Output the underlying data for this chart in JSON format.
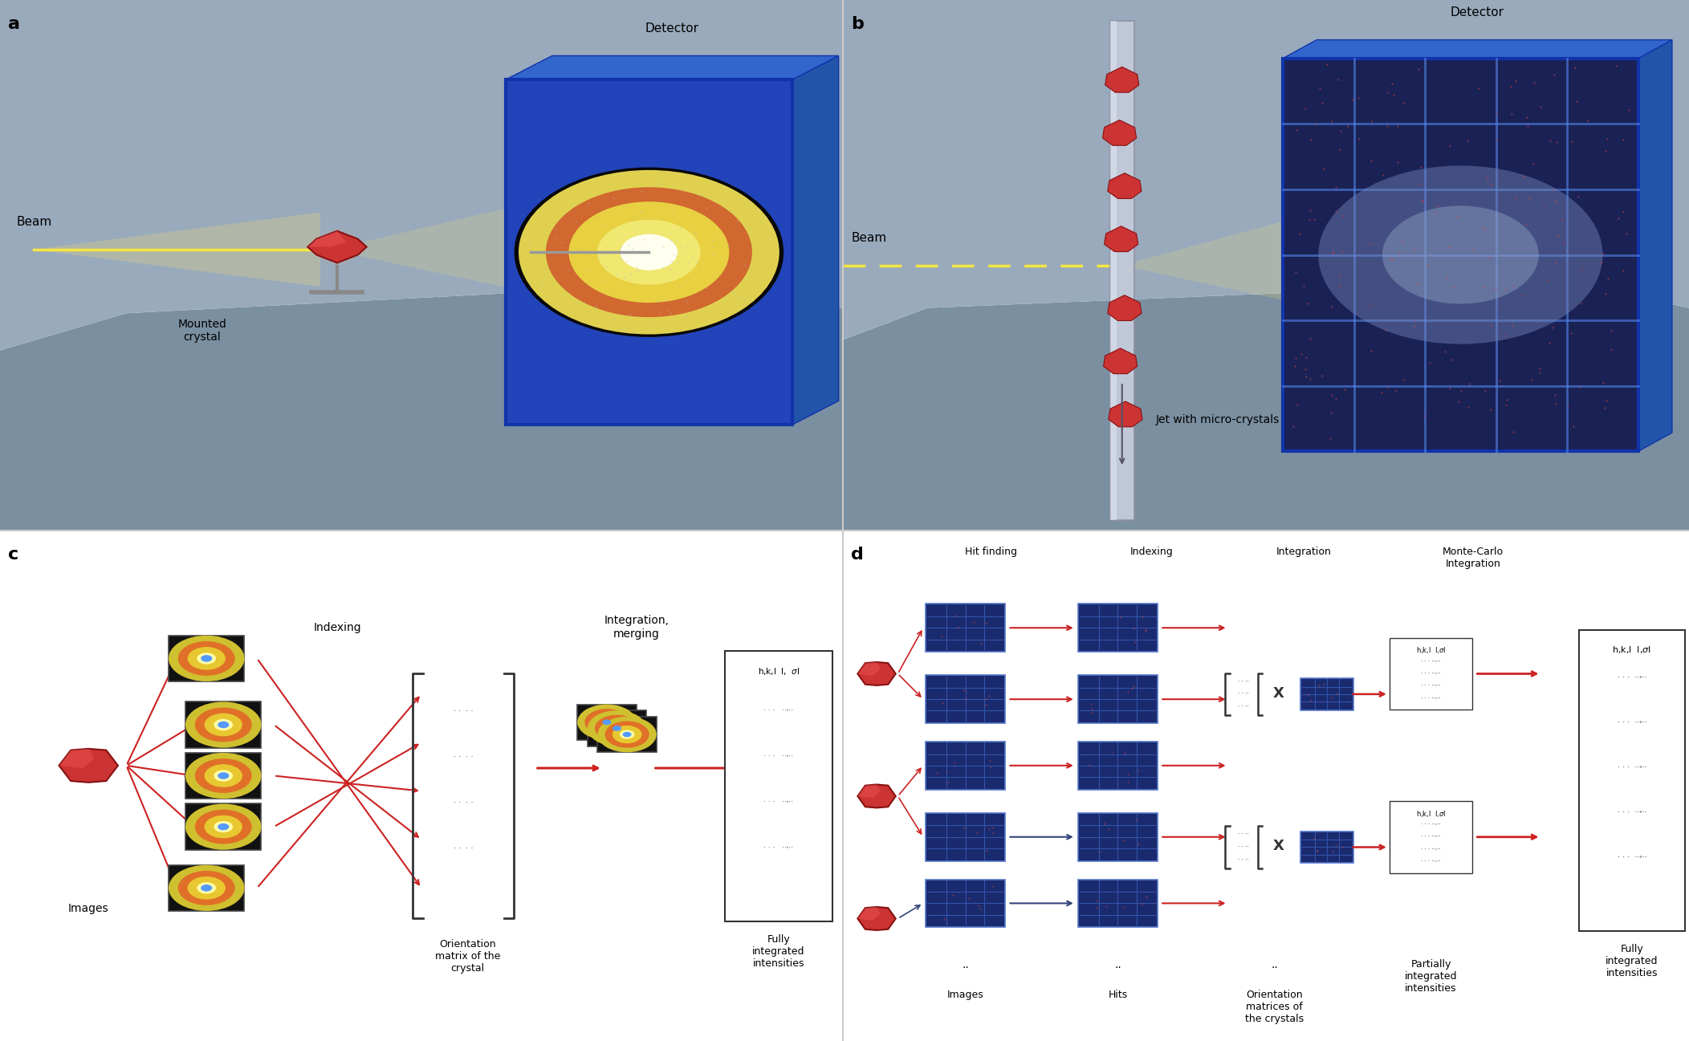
{
  "bg_color": "#ffffff",
  "panel_a_bg": "#8899aa",
  "panel_b_bg": "#8899aa",
  "panel_c_bg": "#ffffff",
  "panel_d_bg": "#ffffff",
  "label_a": "a",
  "label_b": "b",
  "label_c": "c",
  "label_d": "d",
  "detector_color": "#3366cc",
  "detector_dark": "#1a3366",
  "screen_bg": "#000000",
  "beam_color": "#f5e642",
  "beam_dashed_color": "#f5e642",
  "crystal_color": "#cc3333",
  "arrow_red": "#cc2222",
  "arrow_blue": "#334477",
  "matrix_border": "#333333",
  "table_border": "#333333",
  "text_color": "#222222",
  "panel_sep_color": "#cccccc",
  "diffuse_color_outer": "#f0e060",
  "diffuse_color_mid": "#e87020",
  "diffuse_color_inner": "#ffe0b0",
  "diffuse_bg": "#000000",
  "blue_tile_color": "#1a2a6e",
  "blue_tile_light": "#2244aa",
  "blue_tile_grid": "#3366cc",
  "floor_color": "#7a8fa0",
  "wall_color": "#99aabc",
  "jet_color": "#c0c8d8",
  "det_front": "#2244bb",
  "det_side": "#2255aa",
  "det_top": "#3366cc",
  "det_edge": "#1133aa",
  "det2_front": "#1a2255"
}
